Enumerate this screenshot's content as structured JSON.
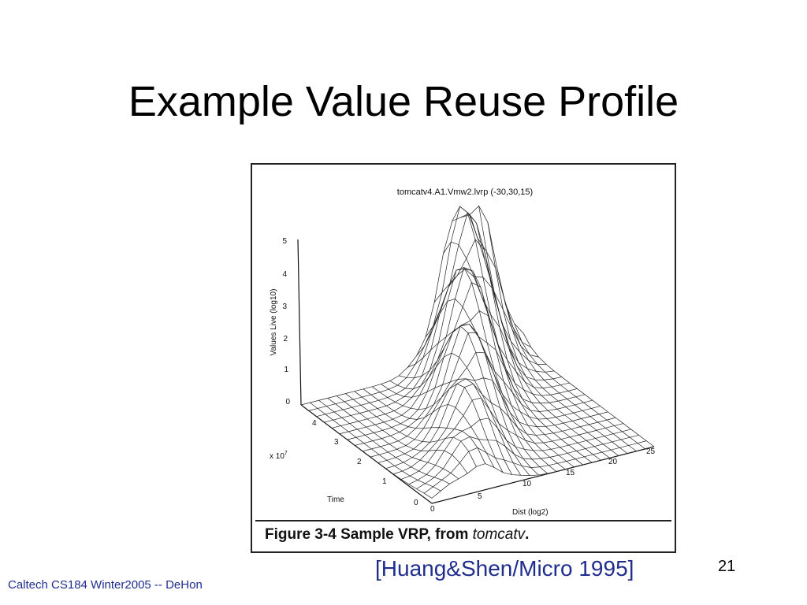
{
  "slide": {
    "title": "Example Value Reuse Profile",
    "citation": "[Huang&Shen/Micro 1995]",
    "slide_number": "21",
    "footer": "Caltech CS184 Winter2005 -- DeHon"
  },
  "figure": {
    "plot_title": "tomcatv4.A1.Vmw2.lvrp (-30,30,15)",
    "caption_prefix": "Figure 3-4 Sample VRP, from ",
    "caption_italic": "tomcatv",
    "caption_suffix": ".",
    "z_axis_label": "Values Live (log10)",
    "z_ticks": [
      "0",
      "1",
      "2",
      "3",
      "4",
      "5"
    ],
    "time_axis_label": "Time",
    "time_multiplier": "x 10",
    "time_exponent": "7",
    "time_ticks": [
      "0",
      "1",
      "2",
      "3",
      "4"
    ],
    "dist_axis_label": "Dist (log2)",
    "dist_ticks": [
      "0",
      "5",
      "10",
      "15",
      "20",
      "25"
    ]
  },
  "colors": {
    "citation": "#1f2d8f",
    "footer": "#1f2d8f",
    "title": "#000000"
  }
}
